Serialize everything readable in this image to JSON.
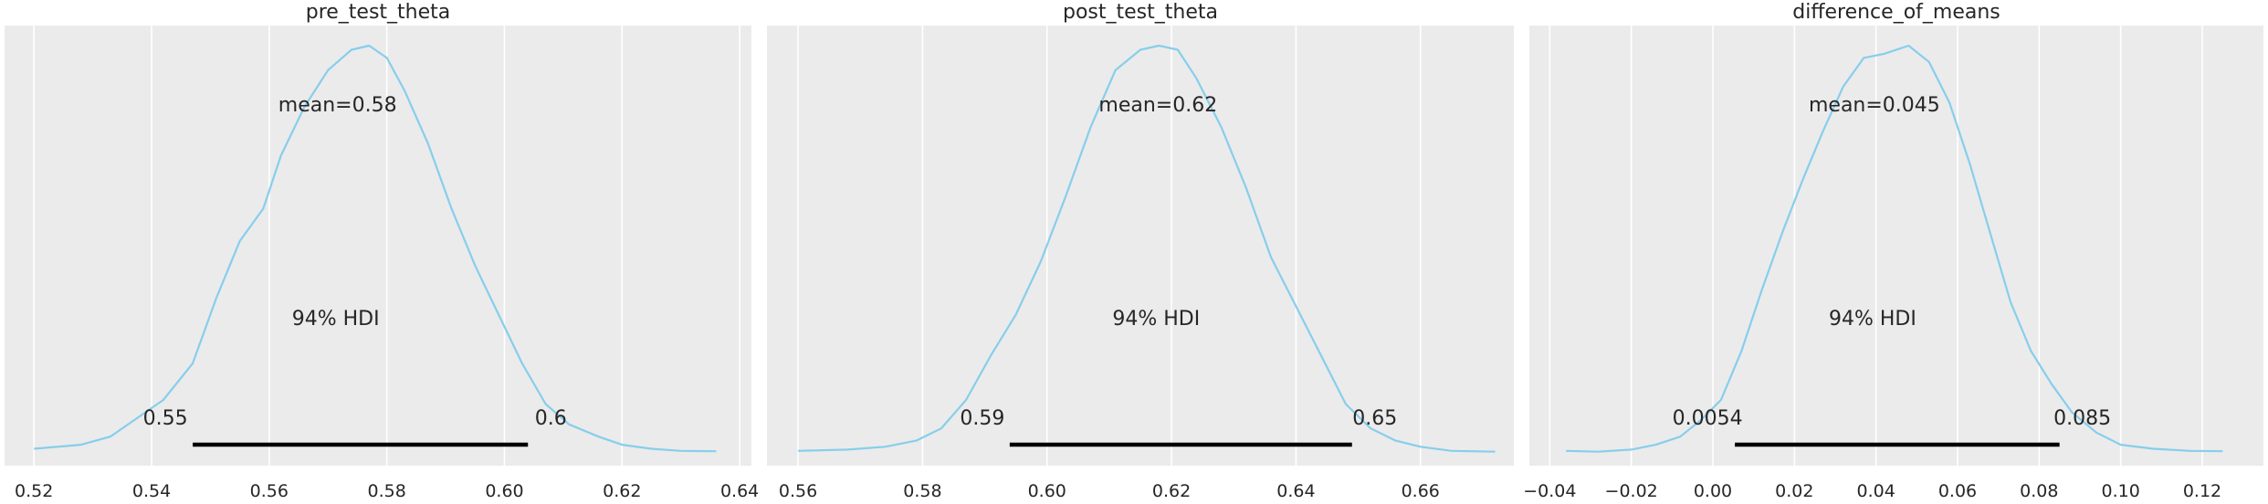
{
  "chart_data": [
    {
      "type": "area",
      "title": "pre_test_theta",
      "xlabel": "",
      "ylabel": "",
      "xlim": [
        0.515,
        0.642
      ],
      "xticks": [
        0.52,
        0.54,
        0.56,
        0.58,
        0.6,
        0.62,
        0.64
      ],
      "tick_labels": [
        "0.52",
        "0.54",
        "0.56",
        "0.58",
        "0.60",
        "0.62",
        "0.64"
      ],
      "grid": true,
      "color": "#87ceeb",
      "mean_label": "mean=0.58",
      "hdi_label": "94% HDI",
      "hdi": [
        0.547,
        0.604
      ],
      "hdi_low_label": "0.55",
      "hdi_high_label": "0.6",
      "density": {
        "x": [
          0.52,
          0.528,
          0.533,
          0.538,
          0.542,
          0.547,
          0.551,
          0.555,
          0.559,
          0.562,
          0.566,
          0.57,
          0.574,
          0.577,
          0.58,
          0.583,
          0.587,
          0.591,
          0.595,
          0.599,
          0.603,
          0.607,
          0.611,
          0.616,
          0.62,
          0.625,
          0.63,
          0.636
        ],
        "y": [
          0.01,
          0.02,
          0.04,
          0.09,
          0.13,
          0.22,
          0.38,
          0.52,
          0.6,
          0.73,
          0.85,
          0.94,
          0.99,
          1.0,
          0.97,
          0.89,
          0.76,
          0.6,
          0.46,
          0.34,
          0.22,
          0.12,
          0.07,
          0.04,
          0.02,
          0.01,
          0.005,
          0.004
        ]
      }
    },
    {
      "type": "area",
      "title": "post_test_theta",
      "xlabel": "",
      "ylabel": "",
      "xlim": [
        0.555,
        0.675
      ],
      "xticks": [
        0.56,
        0.58,
        0.6,
        0.62,
        0.64,
        0.66
      ],
      "tick_labels": [
        "0.56",
        "0.58",
        "0.60",
        "0.62",
        "0.64",
        "0.66"
      ],
      "grid": true,
      "color": "#87ceeb",
      "mean_label": "mean=0.62",
      "hdi_label": "94% HDI",
      "hdi": [
        0.594,
        0.649
      ],
      "hdi_low_label": "0.59",
      "hdi_high_label": "0.65",
      "density": {
        "x": [
          0.56,
          0.568,
          0.574,
          0.579,
          0.583,
          0.587,
          0.591,
          0.595,
          0.599,
          0.603,
          0.607,
          0.611,
          0.615,
          0.618,
          0.621,
          0.624,
          0.628,
          0.632,
          0.636,
          0.64,
          0.644,
          0.648,
          0.652,
          0.656,
          0.66,
          0.665,
          0.672
        ],
        "y": [
          0.005,
          0.008,
          0.015,
          0.03,
          0.06,
          0.13,
          0.24,
          0.34,
          0.47,
          0.63,
          0.8,
          0.94,
          0.99,
          1.0,
          0.99,
          0.92,
          0.8,
          0.65,
          0.48,
          0.36,
          0.24,
          0.12,
          0.06,
          0.03,
          0.015,
          0.005,
          0.003
        ]
      }
    },
    {
      "type": "area",
      "title": "difference_of_means",
      "xlabel": "",
      "ylabel": "",
      "xlim": [
        -0.045,
        0.135
      ],
      "xticks": [
        -0.04,
        -0.02,
        0.0,
        0.02,
        0.04,
        0.06,
        0.08,
        0.1,
        0.12
      ],
      "tick_labels": [
        "−0.04",
        "−0.02",
        "0.00",
        "0.02",
        "0.04",
        "0.06",
        "0.08",
        "0.10",
        "0.12"
      ],
      "grid": true,
      "color": "#87ceeb",
      "mean_label": "mean=0.045",
      "hdi_label": "94% HDI",
      "hdi": [
        0.0054,
        0.085
      ],
      "hdi_low_label": "0.0054",
      "hdi_high_label": "0.085",
      "density": {
        "x": [
          -0.036,
          -0.028,
          -0.02,
          -0.014,
          -0.008,
          -0.003,
          0.002,
          0.007,
          0.012,
          0.017,
          0.022,
          0.027,
          0.032,
          0.037,
          0.042,
          0.048,
          0.053,
          0.058,
          0.063,
          0.068,
          0.073,
          0.078,
          0.083,
          0.088,
          0.094,
          0.1,
          0.108,
          0.117,
          0.125
        ],
        "y": [
          0.005,
          0.003,
          0.008,
          0.02,
          0.04,
          0.08,
          0.13,
          0.25,
          0.4,
          0.54,
          0.67,
          0.79,
          0.9,
          0.97,
          0.98,
          1.0,
          0.96,
          0.86,
          0.71,
          0.54,
          0.37,
          0.25,
          0.17,
          0.1,
          0.05,
          0.02,
          0.01,
          0.005,
          0.004
        ]
      }
    }
  ]
}
